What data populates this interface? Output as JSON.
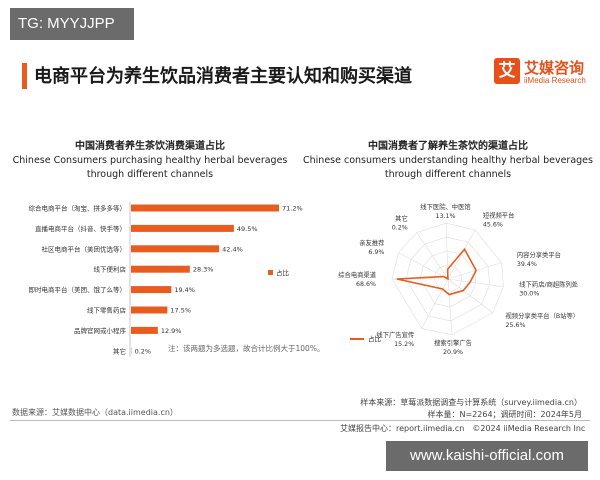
{
  "tg_label": "TG: MYYJJPP",
  "main_title": "电商平台为养生饮品消费者主要认知和购买渠道",
  "logo": {
    "mark": "艾",
    "cn": "艾媒咨询",
    "en": "iiMedia Research"
  },
  "colors": {
    "accent": "#e85d1e",
    "gray": "#888888",
    "grid": "#cccccc"
  },
  "chart_data": [
    {
      "type": "bar",
      "title": "中国消费者养生茶饮消费渠道占比",
      "subtitle": "Chinese Consumers purchasing healthy herbal beverages through different channels",
      "categories": [
        "综合电商平台（淘宝、拼多多等）",
        "直播电商平台（抖音、快手等）",
        "社区电商平台（美团优选等）",
        "线下便利店",
        "即时电商平台（美团、饿了么等）",
        "线下零售药店",
        "品牌官网或小程序",
        "其它"
      ],
      "values": [
        71.2,
        49.5,
        42.4,
        28.3,
        19.4,
        17.5,
        12.9,
        0.2
      ],
      "value_labels": [
        "71.2%",
        "49.5%",
        "42.4%",
        "28.3%",
        "19.4%",
        "17.5%",
        "12.9%",
        "0.2%"
      ],
      "legend": "占比",
      "xlim": [
        0,
        75
      ],
      "note": "注：该两题为多选题，故合计比例大于100%。"
    },
    {
      "type": "radar",
      "title": "中国消费者了解养生茶饮的渠道占比",
      "subtitle": "Chinese consumers understanding healthy herbal beverages through different channels",
      "categories": [
        "线下医院、中医馆",
        "短视频平台",
        "内容分享类平台",
        "线下药店/商超陈列处",
        "视频分享类平台（B站等）",
        "搜索引擎广告",
        "线下广告宣传",
        "综合电商渠道",
        "亲友推荐",
        "其它"
      ],
      "values": [
        13.1,
        45.6,
        39.4,
        30.0,
        25.6,
        20.9,
        15.2,
        68.6,
        6.9,
        0.2
      ],
      "value_labels": [
        "13.1%",
        "45.6%",
        "39.4%",
        "30.0%",
        "25.6%",
        "20.9%",
        "15.2%",
        "68.6%",
        "6.9%",
        "0.2%"
      ],
      "legend": "占比",
      "rmax": 75
    }
  ],
  "sources": {
    "left": "数据来源：艾媒数据中心（data.iimedia.cn）",
    "right_1": "样本来源：草莓派数据调查与计算系统（survey.iimedia.cn）",
    "right_2": "样本量：N=2264；调研时间：2024年5月"
  },
  "footer": "艾媒报告中心：report.iimedia.cn　©2024 iiMedia Research Inc",
  "watermark": "www.kaishi-official.com"
}
